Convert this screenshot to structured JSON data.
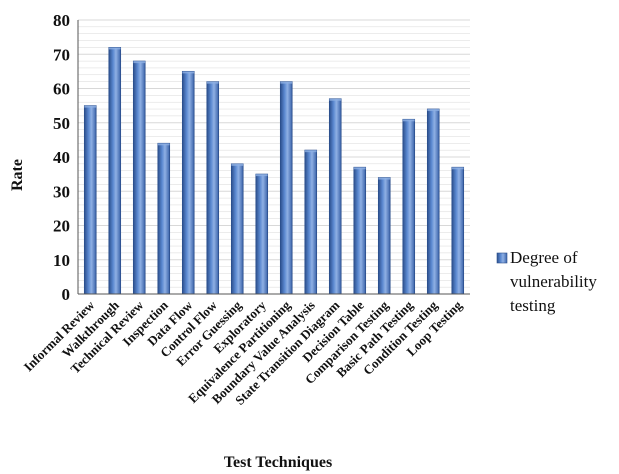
{
  "chart_data": {
    "type": "bar",
    "categories": [
      "Informal Review",
      "Walkthrough",
      "Technical Review",
      "Inspection",
      "Data Flow",
      "Control Flow",
      "Error Guessing",
      "Exploratory",
      "Equivalence Partitioning",
      "Boundary Value Analysis",
      "State Transition Diagram",
      "Decision Table",
      "Comparison Testing",
      "Basic Path Testing",
      "Condition Testing",
      "Loop Testing"
    ],
    "series": [
      {
        "name": "Degree of vulnerability testing",
        "values": [
          55,
          72,
          68,
          44,
          65,
          62,
          38,
          35,
          62,
          42,
          57,
          37,
          34,
          51,
          54,
          37
        ]
      }
    ],
    "xlabel": "Test Techniques",
    "ylabel": "Rate",
    "ylim": [
      0,
      80
    ],
    "yticks": [
      0,
      10,
      20,
      30,
      40,
      50,
      60,
      70,
      80
    ],
    "grid": true,
    "legend": "right",
    "colors": {
      "bar": "#4a78c2",
      "bar_dark": "#2c4f8c",
      "bar_light": "#8fb0e4",
      "grid": "#d8d8d8"
    }
  },
  "legend": {
    "lines": [
      "Degree of",
      "vulnerability",
      "testing"
    ]
  }
}
